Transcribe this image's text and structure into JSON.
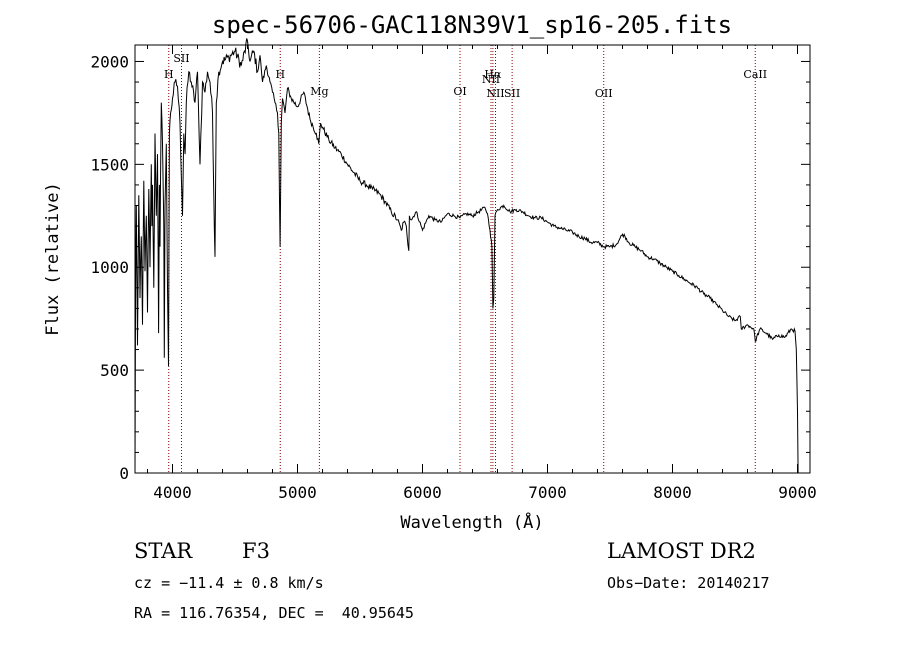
{
  "chart_data": {
    "type": "line",
    "title": "spec-56706-GAC118N39V1_sp16-205.fits",
    "xlabel": "Wavelength (Å)",
    "ylabel": "Flux (relative)",
    "xlim": [
      3700,
      9100
    ],
    "ylim": [
      0,
      2080
    ],
    "xticks": [
      4000,
      5000,
      6000,
      7000,
      8000,
      9000
    ],
    "yticks": [
      0,
      500,
      1000,
      1500,
      2000
    ],
    "grid": false,
    "series": [
      {
        "color": "#000000",
        "x": [
          3700,
          3705,
          3710,
          3720,
          3730,
          3740,
          3750,
          3760,
          3770,
          3780,
          3790,
          3800,
          3810,
          3820,
          3830,
          3835,
          3840,
          3850,
          3860,
          3870,
          3880,
          3889,
          3895,
          3900,
          3910,
          3920,
          3930,
          3934,
          3940,
          3950,
          3960,
          3968,
          3975,
          3985,
          4000,
          4020,
          4040,
          4060,
          4080,
          4090,
          4101,
          4110,
          4130,
          4150,
          4180,
          4200,
          4220,
          4240,
          4260,
          4280,
          4300,
          4320,
          4330,
          4340,
          4350,
          4370,
          4400,
          4450,
          4500,
          4550,
          4600,
          4620,
          4650,
          4680,
          4700,
          4720,
          4750,
          4780,
          4800,
          4820,
          4840,
          4850,
          4861,
          4870,
          4880,
          4900,
          4920,
          4950,
          5000,
          5050,
          5100,
          5150,
          5170,
          5185,
          5200,
          5250,
          5300,
          5350,
          5400,
          5450,
          5500,
          5550,
          5600,
          5650,
          5700,
          5750,
          5800,
          5830,
          5850,
          5870,
          5890,
          5895,
          5910,
          5950,
          6000,
          6050,
          6100,
          6150,
          6200,
          6250,
          6300,
          6350,
          6400,
          6450,
          6500,
          6520,
          6540,
          6555,
          6563,
          6570,
          6580,
          6600,
          6650,
          6700,
          6750,
          6800,
          6850,
          6900,
          6950,
          7000,
          7050,
          7100,
          7150,
          7200,
          7250,
          7300,
          7350,
          7400,
          7450,
          7500,
          7550,
          7600,
          7620,
          7650,
          7700,
          7750,
          7800,
          7850,
          7900,
          7950,
          8000,
          8050,
          8100,
          8150,
          8200,
          8250,
          8300,
          8350,
          8400,
          8450,
          8500,
          8542,
          8550,
          8600,
          8650,
          8662,
          8700,
          8750,
          8800,
          8850,
          8900,
          8950,
          8980,
          8990,
          9000,
          9005
        ],
        "values": [
          0,
          900,
          1300,
          620,
          1350,
          850,
          1150,
          720,
          1420,
          980,
          1250,
          780,
          1380,
          1000,
          1500,
          1200,
          1400,
          900,
          1650,
          1250,
          1550,
          680,
          1400,
          1100,
          1800,
          1600,
          1200,
          560,
          1300,
          1600,
          900,
          520,
          1650,
          1750,
          1820,
          1900,
          1880,
          1700,
          1250,
          1650,
          1550,
          1800,
          1950,
          1900,
          1800,
          1950,
          1500,
          1900,
          1850,
          1950,
          1900,
          1750,
          1350,
          1050,
          1800,
          1950,
          2000,
          2020,
          2050,
          1980,
          2100,
          2000,
          2050,
          1950,
          2030,
          1900,
          1980,
          1900,
          1850,
          1800,
          1750,
          1650,
          1100,
          1700,
          1820,
          1750,
          1870,
          1820,
          1780,
          1850,
          1720,
          1650,
          1600,
          1700,
          1680,
          1620,
          1580,
          1550,
          1500,
          1460,
          1420,
          1400,
          1380,
          1360,
          1320,
          1270,
          1230,
          1180,
          1220,
          1200,
          1080,
          1250,
          1230,
          1270,
          1180,
          1250,
          1230,
          1220,
          1260,
          1250,
          1240,
          1260,
          1250,
          1270,
          1290,
          1260,
          1180,
          1100,
          800,
          850,
          1250,
          1280,
          1300,
          1270,
          1280,
          1270,
          1250,
          1240,
          1240,
          1220,
          1200,
          1190,
          1180,
          1170,
          1150,
          1140,
          1120,
          1120,
          1100,
          1100,
          1110,
          1160,
          1150,
          1120,
          1100,
          1080,
          1050,
          1040,
          1020,
          1000,
          980,
          960,
          940,
          920,
          900,
          870,
          850,
          820,
          790,
          760,
          740,
          760,
          700,
          720,
          700,
          640,
          700,
          680,
          650,
          670,
          660,
          700,
          690,
          600,
          300,
          0
        ]
      }
    ],
    "line_markers": [
      {
        "label": "H",
        "x": 3970
      },
      {
        "label": "SII",
        "x": 4072
      },
      {
        "label": "H",
        "x": 4862
      },
      {
        "label": "Mg",
        "x": 5175
      },
      {
        "label": "OI",
        "x": 6300
      },
      {
        "label": "NII",
        "x": 6548
      },
      {
        "label": "Hα",
        "x": 6563
      },
      {
        "label": "NII",
        "x": 6584
      },
      {
        "label": "SII",
        "x": 6717
      },
      {
        "label": "OII",
        "x": 7450
      },
      {
        "label": "CaII",
        "x": 8662
      }
    ],
    "marker_color": "#8b0000"
  },
  "info": {
    "object_type": "STAR",
    "subclass": "F3",
    "survey": "LAMOST DR2",
    "redshift": "cz = −11.4 ± 0.8 km/s",
    "obs_date": "Obs−Date: 20140217",
    "coords": "RA = 116.76354, DEC =  40.95645"
  }
}
